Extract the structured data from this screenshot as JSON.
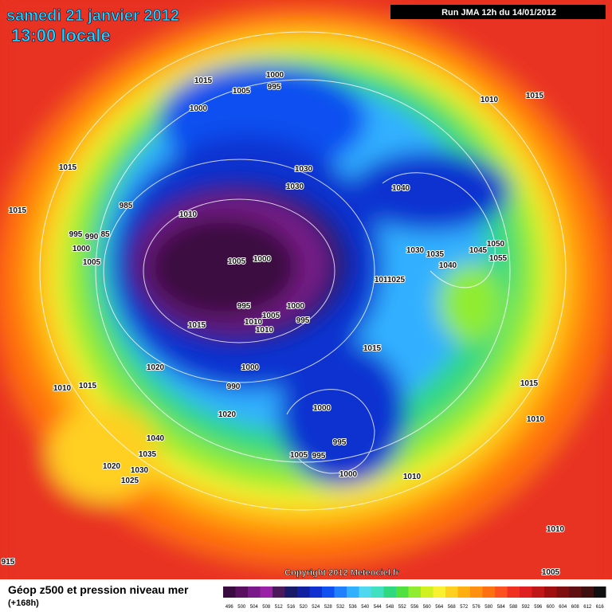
{
  "header": {
    "date": "samedi 21 janvier 2012",
    "time": "13:00 locale",
    "run": "Run JMA 12h du 14/01/2012"
  },
  "copyright": "Copyright 2012 Meteociel.fr",
  "footer": {
    "title": "Géop z500 et pression niveau mer",
    "lead": "(+168h)"
  },
  "colorbar": {
    "labels": [
      "496",
      "500",
      "504",
      "508",
      "512",
      "516",
      "520",
      "524",
      "528",
      "532",
      "536",
      "540",
      "544",
      "548",
      "552",
      "556",
      "560",
      "564",
      "568",
      "572",
      "576",
      "580",
      "584",
      "588",
      "592",
      "596",
      "600",
      "604",
      "608",
      "612",
      "616"
    ],
    "colors": [
      "#3a0b40",
      "#5a1060",
      "#7a1a8a",
      "#9a22a6",
      "#4a1a5a",
      "#1a1a6a",
      "#1020a0",
      "#1030d0",
      "#1050f0",
      "#2080ff",
      "#30b0ff",
      "#50d8f0",
      "#40e0c0",
      "#30d880",
      "#50e040",
      "#90ec30",
      "#d0f020",
      "#f8f030",
      "#ffd020",
      "#ffb010",
      "#ff9010",
      "#ff7010",
      "#ff5020",
      "#f03020",
      "#e02020",
      "#c01818",
      "#a01010",
      "#801010",
      "#601010",
      "#401010",
      "#101010"
    ]
  },
  "isobars": [
    "1015",
    "1005",
    "1000",
    "995",
    "1000",
    "1010",
    "1015",
    "1015",
    "1030",
    "1030",
    "1040",
    "985",
    "1010",
    "1015",
    "995",
    "990",
    "85",
    "1000",
    "1005",
    "1050",
    "1045",
    "1055",
    "1030",
    "1035",
    "1040",
    "1005",
    "1000",
    "1010",
    "1025",
    "995",
    "1000",
    "1005",
    "995",
    "1010",
    "1010",
    "1015",
    "1015",
    "1020",
    "1000",
    "990",
    "1010",
    "1015",
    "1015",
    "1020",
    "1000",
    "1010",
    "1040",
    "995",
    "1035",
    "1005",
    "995",
    "1030",
    "1020",
    "1025",
    "1000",
    "1010",
    "1010",
    "1005",
    "915"
  ]
}
